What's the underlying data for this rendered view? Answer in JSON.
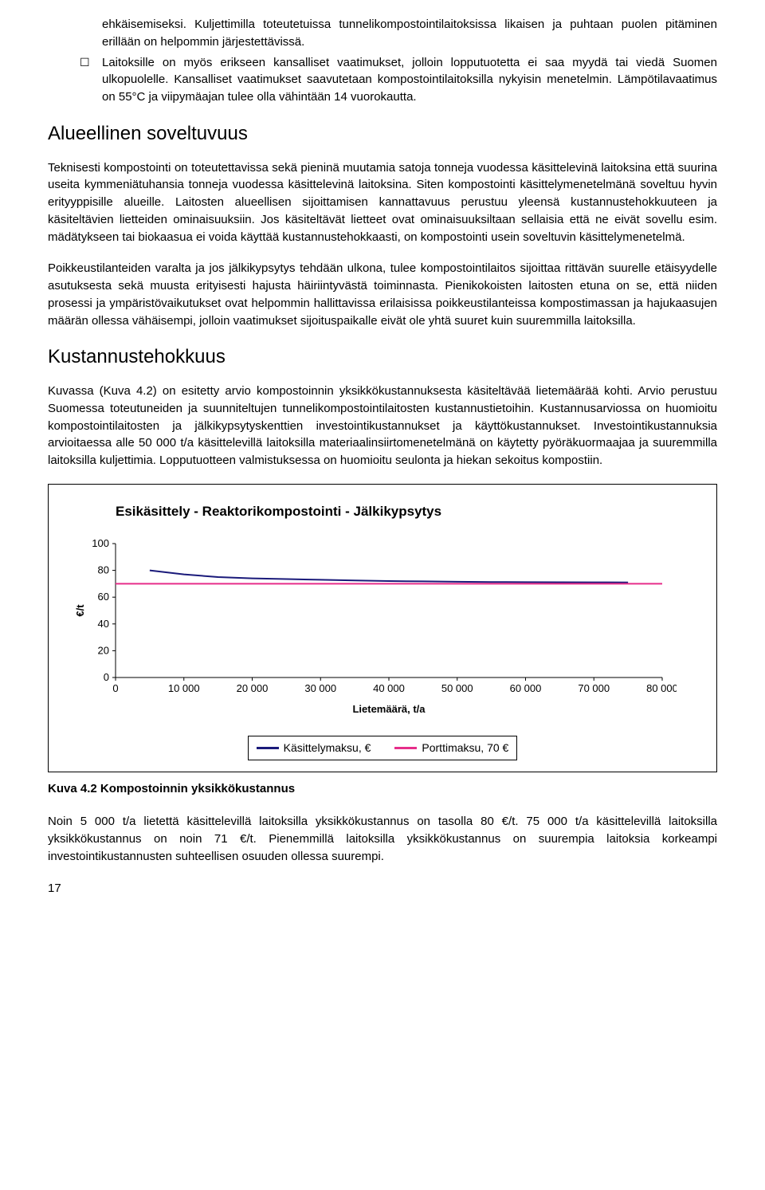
{
  "bullets": [
    {
      "marker": "",
      "text": "ehkäisemiseksi. Kuljettimilla toteutetuissa tunnelikompostointilaitoksissa likaisen ja puhtaan puolen pitäminen erillään on helpommin järjestettävissä."
    },
    {
      "marker": "☐",
      "text": "Laitoksille on myös erikseen kansalliset vaatimukset, jolloin lopputuotetta ei saa myydä tai viedä Suomen ulkopuolelle. Kansalliset vaatimukset saavutetaan kompostointilaitoksilla nykyisin menetelmin. Lämpötilavaatimus on 55°C ja viipymäajan tulee olla vähintään 14 vuorokautta."
    }
  ],
  "section1": {
    "heading": "Alueellinen soveltuvuus",
    "p1": "Teknisesti kompostointi on toteutettavissa sekä pieninä muutamia satoja tonneja vuodessa käsittelevinä laitoksina että suurina useita kymmeniätuhansia tonneja vuodessa käsittelevinä laitoksina. Siten kompostointi käsittelymenetelmänä soveltuu hyvin erityyppisille alueille. Laitosten alueellisen sijoittamisen kannattavuus perustuu yleensä kustannustehokkuuteen ja käsiteltävien lietteiden ominaisuuksiin. Jos käsiteltävät lietteet ovat ominaisuuksiltaan sellaisia että ne eivät sovellu esim. mädätykseen tai biokaasua ei voida käyttää kustannustehokkaasti, on kompostointi usein soveltuvin käsittelymenetelmä.",
    "p2": "Poikkeustilanteiden varalta ja jos jälkikypsytys tehdään ulkona, tulee kompostointilaitos sijoittaa rittävän suurelle etäisyydelle asutuksesta sekä muusta erityisesti hajusta häiriintyvästä toiminnasta. Pienikokoisten laitosten etuna on se, että niiden prosessi ja ympäristövaikutukset ovat helpommin hallittavissa erilaisissa poikkeustilanteissa kompostimassan ja hajukaasujen määrän ollessa vähäisempi, jolloin vaatimukset sijoituspaikalle eivät ole yhtä suuret kuin suuremmilla laitoksilla."
  },
  "section2": {
    "heading": "Kustannustehokkuus",
    "p1": "Kuvassa (Kuva 4.2) on esitetty arvio kompostoinnin yksikkökustannuksesta käsiteltävää lietemäärää kohti. Arvio perustuu Suomessa toteutuneiden ja suunniteltujen tunnelikompostointilaitosten kustannustietoihin. Kustannusarviossa on huomioitu kompostointilaitosten ja jälkikypsytyskenttien investointikustannukset ja käyttökustannukset. Investointikustannuksia arvioitaessa alle 50 000 t/a käsittelevillä laitoksilla materiaalinsiirtomenetelmänä on käytetty pyöräkuormaajaa ja suuremmilla laitoksilla kuljettimia. Lopputuotteen valmistuksessa on huomioitu seulonta ja hiekan sekoitus kompostiin."
  },
  "chart": {
    "type": "line",
    "title": "Esikäsittely - Reaktorikompostointi  - Jälkikypsytys",
    "xlabel": "Lietemäärä, t/a",
    "ylabel": "€/t",
    "xlim": [
      0,
      80000
    ],
    "ylim": [
      0,
      100
    ],
    "xtick_step": 10000,
    "ytick_step": 20,
    "xtick_labels": [
      "0",
      "10 000",
      "20 000",
      "30 000",
      "40 000",
      "50 000",
      "60 000",
      "70 000",
      "80 000"
    ],
    "ytick_labels": [
      "0",
      "20",
      "40",
      "60",
      "80",
      "100"
    ],
    "background_color": "#ffffff",
    "axis_color": "#000000",
    "series": [
      {
        "name": "Käsittelymaksu, €",
        "color": "#1a1a7a",
        "line_width": 2,
        "points": [
          [
            5000,
            80
          ],
          [
            10000,
            77
          ],
          [
            15000,
            75
          ],
          [
            20000,
            74
          ],
          [
            25000,
            73.5
          ],
          [
            30000,
            73
          ],
          [
            35000,
            72.5
          ],
          [
            40000,
            72
          ],
          [
            45000,
            71.8
          ],
          [
            50000,
            71.5
          ],
          [
            55000,
            71.3
          ],
          [
            60000,
            71.2
          ],
          [
            65000,
            71.1
          ],
          [
            70000,
            71.05
          ],
          [
            75000,
            71
          ]
        ]
      },
      {
        "name": "Porttimaksu, 70 €",
        "color": "#e62e8a",
        "line_width": 2,
        "points": [
          [
            0,
            70
          ],
          [
            80000,
            70
          ]
        ]
      }
    ],
    "label_fontsize": 13,
    "tick_fontsize": 13
  },
  "caption": "Kuva 4.2 Kompostoinnin yksikkökustannus",
  "footer_p": "Noin 5 000 t/a lietettä käsittelevillä laitoksilla yksikkökustannus on tasolla 80 €/t. 75 000 t/a käsittelevillä laitoksilla yksikkökustannus on noin 71 €/t. Pienemmillä laitoksilla yksikkökustannus on suurempia laitoksia korkeampi investointikustannusten suhteellisen osuuden ollessa suurempi.",
  "page_number": "17"
}
